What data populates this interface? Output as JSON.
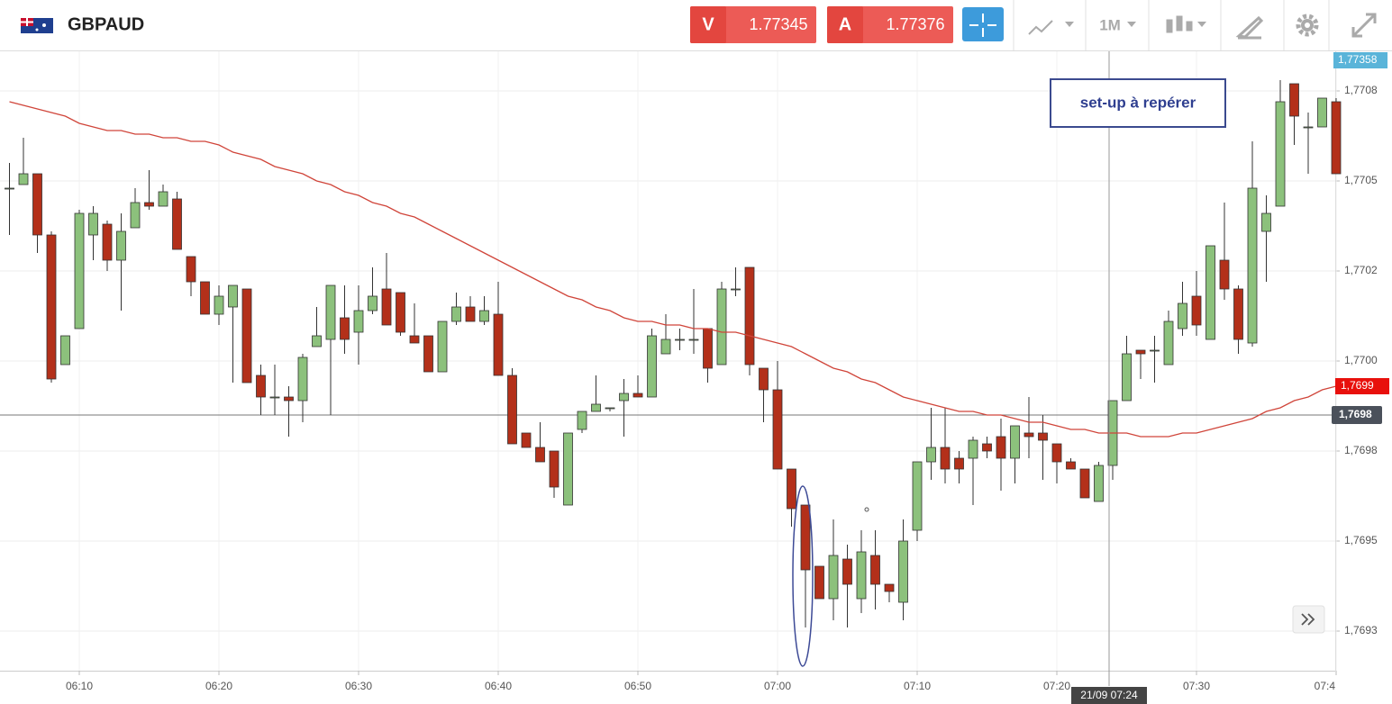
{
  "toolbar": {
    "symbol": "GBPAUD",
    "sell_label": "V",
    "sell_price": "1.77345",
    "buy_label": "A",
    "buy_price": "1.77376",
    "timeframe": "1M"
  },
  "chart_data": {
    "type": "candlestick",
    "categories": [
      null,
      null,
      null,
      null,
      null,
      "06:10",
      null,
      null,
      null,
      null,
      null,
      null,
      null,
      null,
      null,
      "06:20",
      null,
      null,
      null,
      null,
      null,
      null,
      null,
      null,
      null,
      "06:30",
      null,
      null,
      null,
      null,
      null,
      null,
      null,
      null,
      null,
      "06:40",
      null,
      null,
      null,
      null,
      null,
      null,
      null,
      null,
      null,
      "06:50",
      null,
      null,
      null,
      null,
      null,
      null,
      null,
      null,
      null,
      "07:00",
      null,
      null,
      null,
      null,
      null,
      null,
      null,
      null,
      null,
      "07:10",
      null,
      null,
      null,
      null,
      null,
      null,
      null,
      null,
      null,
      "07:20",
      null,
      null,
      null,
      null,
      null,
      null,
      null,
      null,
      null,
      "07:30",
      null,
      null,
      null,
      null,
      null,
      null,
      null,
      null,
      null,
      "07:4"
    ],
    "open": [
      1.77048,
      1.77049,
      1.77052,
      1.77035,
      1.76999,
      1.77009,
      1.77035,
      1.77038,
      1.77028,
      1.77037,
      1.77044,
      1.77043,
      1.77045,
      1.77029,
      1.77022,
      1.77013,
      1.77015,
      1.7702,
      1.76996,
      1.7699,
      1.7699,
      1.76989,
      1.77004,
      1.77006,
      1.77012,
      1.77008,
      1.77014,
      1.7702,
      1.77019,
      1.77007,
      1.77007,
      1.76997,
      1.77011,
      1.77015,
      1.77011,
      1.77013,
      1.76996,
      1.7698,
      1.76976,
      1.76975,
      1.7696,
      1.76981,
      1.76986,
      1.76987,
      1.76989,
      1.76991,
      1.7699,
      1.77002,
      1.77006,
      1.77006,
      1.77009,
      1.76999,
      1.7702,
      1.77026,
      1.76998,
      1.76992,
      1.7697,
      1.7696,
      1.76943,
      1.76934,
      1.76945,
      1.76934,
      1.76946,
      1.76938,
      1.76933,
      1.76953,
      1.76972,
      1.76976,
      1.76973,
      1.76973,
      1.76977,
      1.76979,
      1.76973,
      1.7698,
      1.7698,
      1.76977,
      1.76972,
      1.7697,
      1.76961,
      1.76971,
      1.76989,
      1.77003,
      1.77003,
      1.76999,
      1.77009,
      1.77018,
      1.77006,
      1.77028,
      1.7702,
      1.77005,
      1.77036,
      1.77043,
      1.77077,
      1.77065,
      1.77065,
      1.77072
    ],
    "high": [
      1.77055,
      1.77062,
      1.77052,
      1.77036,
      1.77007,
      1.77042,
      1.77043,
      1.77039,
      1.77041,
      1.77048,
      1.77053,
      1.77049,
      1.77047,
      1.77029,
      1.77022,
      1.77021,
      1.77021,
      1.7702,
      1.76999,
      1.76999,
      1.76993,
      1.77002,
      1.77015,
      1.77021,
      1.77021,
      1.77021,
      1.77026,
      1.7703,
      1.77019,
      1.77016,
      1.77007,
      1.77011,
      1.77019,
      1.77018,
      1.77018,
      1.77022,
      1.76998,
      1.7698,
      1.76983,
      1.76975,
      1.7698,
      1.76986,
      1.76996,
      1.76987,
      1.76995,
      1.76996,
      1.77009,
      1.77013,
      1.77009,
      1.7702,
      1.77009,
      1.77022,
      1.77026,
      1.77026,
      1.76998,
      1.77,
      1.7697,
      1.7696,
      1.76943,
      1.76956,
      1.76949,
      1.76953,
      1.76953,
      1.76938,
      1.76956,
      1.76972,
      1.76987,
      1.76987,
      1.76975,
      1.76979,
      1.76979,
      1.76984,
      1.76982,
      1.7699,
      1.76985,
      1.76977,
      1.76973,
      1.7697,
      1.76972,
      1.76989,
      1.77007,
      1.77003,
      1.77007,
      1.77014,
      1.77022,
      1.77025,
      1.77032,
      1.77044,
      1.77021,
      1.77061,
      1.77046,
      1.77078,
      1.77077,
      1.77069,
      1.77073,
      1.77073
    ],
    "low": [
      1.77035,
      1.77049,
      1.7703,
      1.76994,
      1.76999,
      1.77009,
      1.77028,
      1.77025,
      1.77014,
      1.77037,
      1.77042,
      1.77043,
      1.77031,
      1.77018,
      1.77013,
      1.7701,
      1.76994,
      1.76994,
      1.76985,
      1.76985,
      1.76979,
      1.76983,
      1.77004,
      1.76985,
      1.77002,
      1.76999,
      1.77013,
      1.7701,
      1.77007,
      1.77005,
      1.76997,
      1.76997,
      1.7701,
      1.77011,
      1.7701,
      1.76996,
      1.76977,
      1.76976,
      1.76972,
      1.76962,
      1.7696,
      1.7698,
      1.76986,
      1.76986,
      1.76979,
      1.7699,
      1.7699,
      1.77002,
      1.77003,
      1.77002,
      1.76994,
      1.76999,
      1.77018,
      1.76996,
      1.76983,
      1.7697,
      1.76954,
      1.76926,
      1.76934,
      1.76928,
      1.76926,
      1.7693,
      1.76931,
      1.76933,
      1.76928,
      1.7695,
      1.76967,
      1.76966,
      1.76966,
      1.7696,
      1.76973,
      1.76964,
      1.76966,
      1.76973,
      1.76967,
      1.76966,
      1.7697,
      1.76962,
      1.76961,
      1.76967,
      1.76989,
      1.76995,
      1.76994,
      1.76999,
      1.77007,
      1.77007,
      1.77006,
      1.77017,
      1.77002,
      1.77004,
      1.77022,
      1.77043,
      1.7706,
      1.77052,
      1.77065,
      1.77052
    ],
    "close": [
      1.77048,
      1.77052,
      1.77035,
      1.76995,
      1.77007,
      1.77041,
      1.77041,
      1.77028,
      1.77036,
      1.77044,
      1.77043,
      1.77047,
      1.77031,
      1.77022,
      1.77013,
      1.77018,
      1.77021,
      1.76994,
      1.7699,
      1.7699,
      1.76989,
      1.77001,
      1.77007,
      1.77021,
      1.77006,
      1.77014,
      1.77018,
      1.7701,
      1.77008,
      1.77005,
      1.76997,
      1.77011,
      1.77015,
      1.77011,
      1.77014,
      1.76996,
      1.76977,
      1.76976,
      1.76972,
      1.76965,
      1.7698,
      1.76986,
      1.76988,
      1.76987,
      1.76991,
      1.7699,
      1.77007,
      1.77006,
      1.77006,
      1.77006,
      1.76998,
      1.7702,
      1.7702,
      1.76999,
      1.76992,
      1.7697,
      1.76959,
      1.76942,
      1.76934,
      1.76946,
      1.76938,
      1.76947,
      1.76938,
      1.76936,
      1.7695,
      1.76972,
      1.76976,
      1.7697,
      1.7697,
      1.76978,
      1.76975,
      1.76973,
      1.76982,
      1.76979,
      1.76978,
      1.76972,
      1.7697,
      1.76962,
      1.76971,
      1.76989,
      1.77002,
      1.77002,
      1.77003,
      1.77011,
      1.77016,
      1.7701,
      1.77032,
      1.7702,
      1.77006,
      1.77048,
      1.77041,
      1.77072,
      1.77068,
      1.77065,
      1.77073,
      1.77052
    ],
    "up_color": "#8cc17c",
    "down_color": "#b3301a",
    "series": [
      {
        "color": "#d0453a",
        "values": [
          1.77072,
          1.77071,
          1.7707,
          1.77069,
          1.77068,
          1.77066,
          1.77065,
          1.77064,
          1.77064,
          1.77063,
          1.77063,
          1.77062,
          1.77062,
          1.77061,
          1.77061,
          1.7706,
          1.77058,
          1.77057,
          1.77056,
          1.77054,
          1.77053,
          1.77052,
          1.7705,
          1.77049,
          1.77047,
          1.77046,
          1.77044,
          1.77043,
          1.77041,
          1.7704,
          1.77038,
          1.77036,
          1.77034,
          1.77032,
          1.7703,
          1.77028,
          1.77026,
          1.77024,
          1.77022,
          1.7702,
          1.77018,
          1.77017,
          1.77015,
          1.77014,
          1.77012,
          1.77011,
          1.77011,
          1.7701,
          1.7701,
          1.77009,
          1.77009,
          1.77008,
          1.77008,
          1.77007,
          1.77006,
          1.77005,
          1.77004,
          1.77002,
          1.77,
          1.76998,
          1.76997,
          1.76995,
          1.76994,
          1.76992,
          1.7699,
          1.76989,
          1.76988,
          1.76987,
          1.76986,
          1.76986,
          1.76985,
          1.76985,
          1.76984,
          1.76983,
          1.76983,
          1.76982,
          1.76981,
          1.76981,
          1.7698,
          1.7698,
          1.7698,
          1.76979,
          1.76979,
          1.76979,
          1.7698,
          1.7698,
          1.76981,
          1.76982,
          1.76983,
          1.76984,
          1.76986,
          1.76987,
          1.76989,
          1.7699,
          1.76992,
          1.76993
        ]
      }
    ],
    "ylim": [
      1.76914,
      1.77086
    ],
    "yticks": [
      {
        "value": 1.77075,
        "label": "1,7708"
      },
      {
        "value": 1.7705,
        "label": "1,7705"
      },
      {
        "value": 1.77025,
        "label": "1,7702"
      },
      {
        "value": 1.77,
        "label": "1,7700"
      },
      {
        "value": 1.76975,
        "label": "1,7698"
      },
      {
        "value": 1.7695,
        "label": "1,7695"
      },
      {
        "value": 1.76925,
        "label": "1,7693"
      }
    ],
    "grid": true,
    "price_line": {
      "value": 1.76985,
      "label": "1,7698"
    },
    "ma_badge_label": "1,7699",
    "top_badge_label": "1,77358",
    "crosshair_label": "21/09 07:24",
    "annotation": "set-up à repérer"
  }
}
